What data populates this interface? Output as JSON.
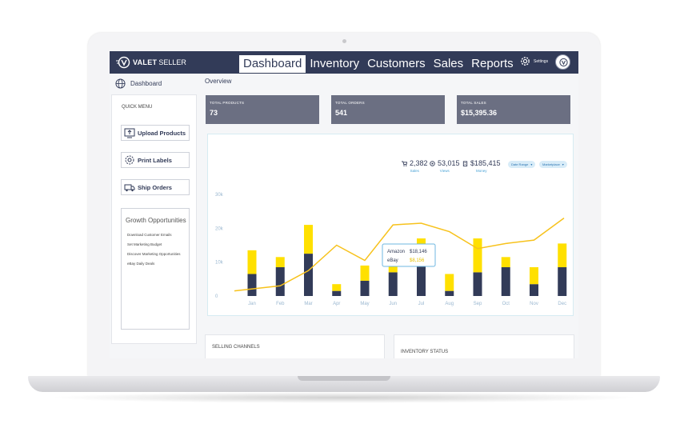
{
  "brand": {
    "name_bold": "VALET",
    "name_light": "SELLER"
  },
  "nav": {
    "tabs": [
      {
        "label": "Dashboard",
        "active": true
      },
      {
        "label": "Inventory",
        "active": false
      },
      {
        "label": "Customers",
        "active": false
      },
      {
        "label": "Sales",
        "active": false
      },
      {
        "label": "Reports",
        "active": false
      }
    ],
    "settings_label": "Settings"
  },
  "sidebar": {
    "header": "Dashboard",
    "quick_menu_title": "QUICK MENU",
    "buttons": [
      {
        "label": "Upload Products",
        "icon": "upload-icon"
      },
      {
        "label": "Print Labels",
        "icon": "print-icon"
      },
      {
        "label": "Ship Orders",
        "icon": "truck-icon"
      }
    ],
    "growth": {
      "title": "Growth Opportunities",
      "links": [
        "Download Customer Emails",
        "Set Marketing Budget",
        "Discover Marketing Opportunities",
        "eBay Daily Deals"
      ]
    }
  },
  "main": {
    "overview_label": "Overview",
    "stats": [
      {
        "label": "TOTAL PRODUCTS",
        "value": "73"
      },
      {
        "label": "TOTAL ORDERS",
        "value": "541"
      },
      {
        "label": "TOTAL SALES",
        "value": "$15,395.36"
      }
    ],
    "summary": [
      {
        "value": "2,382",
        "label": "Sales",
        "icon": "cart-icon"
      },
      {
        "value": "53,015",
        "label": "Views",
        "icon": "eye-icon"
      },
      {
        "value": "$185,415",
        "label": "Money",
        "icon": "money-icon"
      }
    ],
    "filters": [
      "Date Range",
      "Marketplace"
    ],
    "tooltip": {
      "row1_label": "Amazon",
      "row1_value": "$18,146",
      "row2_label": "eBay",
      "row2_value": "$8,156"
    },
    "bottom_cards": [
      "SELLING CHANNELS",
      "INVENTORY STATUS"
    ]
  },
  "colors": {
    "navy": "#323b58",
    "yellow": "#ffe000",
    "line": "#f7c21c",
    "stat_bg": "#6b6f82",
    "accent": "#4aa3d6"
  },
  "chart_data": {
    "type": "bar",
    "categories": [
      "Jan",
      "Feb",
      "Mar",
      "Apr",
      "May",
      "Jun",
      "Jul",
      "Aug",
      "Sep",
      "Oct",
      "Nov",
      "Dec"
    ],
    "y_ticks": [
      "30k",
      "20k",
      "10k",
      "0"
    ],
    "ylim": [
      0,
      30000
    ],
    "stacked": true,
    "series": [
      {
        "name": "Amazon",
        "color": "#323b58",
        "values": [
          6500,
          8500,
          12500,
          1500,
          4500,
          7000,
          9500,
          1500,
          7000,
          8500,
          3500,
          8500
        ]
      },
      {
        "name": "eBay",
        "color": "#ffe000",
        "values": [
          7000,
          3000,
          8500,
          2000,
          4500,
          4500,
          7500,
          5000,
          10000,
          3000,
          5000,
          7000
        ]
      }
    ],
    "trend": {
      "color": "#f7c21c",
      "values": [
        1500,
        3000,
        7500,
        15000,
        10500,
        21000,
        21500,
        19000,
        14000,
        15500,
        16500,
        23000
      ]
    }
  }
}
